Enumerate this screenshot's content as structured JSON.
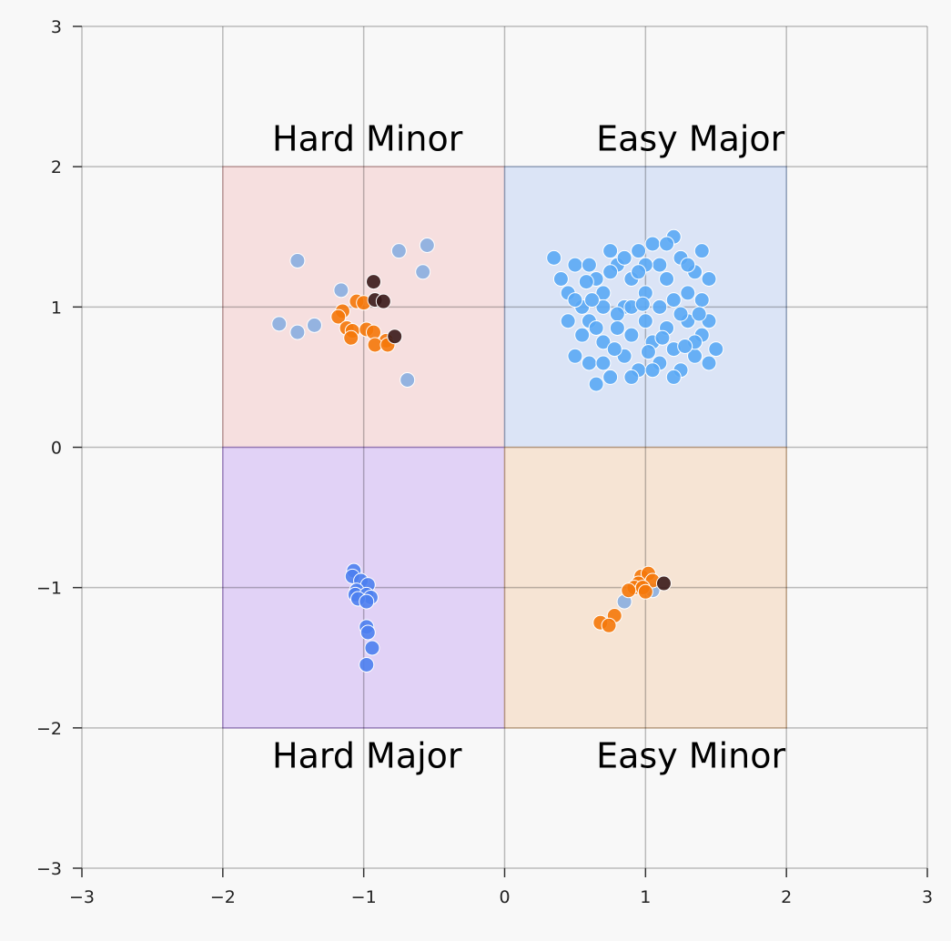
{
  "chart_data": {
    "type": "scatter",
    "title": "",
    "xlabel": "",
    "ylabel": "",
    "xlim": [
      -3,
      3
    ],
    "ylim": [
      -3,
      3
    ],
    "xticks": [
      -3,
      -2,
      -1,
      0,
      1,
      2,
      3
    ],
    "yticks": [
      -3,
      -2,
      -1,
      0,
      1,
      2,
      3
    ],
    "xtick_labels": [
      "−3",
      "−2",
      "−1",
      "0",
      "1",
      "2",
      "3"
    ],
    "ytick_labels": [
      "−3",
      "−2",
      "−1",
      "0",
      "1",
      "2",
      "3"
    ],
    "grid": true,
    "quadrants": [
      {
        "label": "Hard Minor",
        "x_range": [
          -2,
          0
        ],
        "y_range": [
          0,
          2
        ],
        "color": "#f3c1c1",
        "label_pos": [
          -1.65,
          2.2
        ]
      },
      {
        "label": "Easy Major",
        "x_range": [
          0,
          2
        ],
        "y_range": [
          0,
          2
        ],
        "color": "#b9cdf3",
        "label_pos": [
          0.65,
          2.2
        ]
      },
      {
        "label": "Hard Major",
        "x_range": [
          -2,
          0
        ],
        "y_range": [
          -2,
          0
        ],
        "color": "#c6a3f5",
        "label_pos": [
          -1.65,
          -2.2
        ]
      },
      {
        "label": "Easy Minor",
        "x_range": [
          0,
          2
        ],
        "y_range": [
          -2,
          0
        ],
        "color": "#f5cda8",
        "label_pos": [
          0.65,
          -2.2
        ]
      }
    ],
    "series": [
      {
        "color": "#5aa9f5",
        "points": [
          [
            0.35,
            1.35
          ],
          [
            0.4,
            1.2
          ],
          [
            0.45,
            1.1
          ],
          [
            0.5,
            1.3
          ],
          [
            0.55,
            1.0
          ],
          [
            0.6,
            0.9
          ],
          [
            0.65,
            1.2
          ],
          [
            0.7,
            1.1
          ],
          [
            0.75,
            1.4
          ],
          [
            0.8,
            1.3
          ],
          [
            0.85,
            1.0
          ],
          [
            0.9,
            1.2
          ],
          [
            0.95,
            1.4
          ],
          [
            1.0,
            1.1
          ],
          [
            1.05,
            1.45
          ],
          [
            1.1,
            1.3
          ],
          [
            1.15,
            1.2
          ],
          [
            1.2,
            1.5
          ],
          [
            1.25,
            1.35
          ],
          [
            1.3,
            1.1
          ],
          [
            1.35,
            1.25
          ],
          [
            1.4,
            1.05
          ],
          [
            1.45,
            0.9
          ],
          [
            1.5,
            0.7
          ],
          [
            1.45,
            0.6
          ],
          [
            1.4,
            0.8
          ],
          [
            1.35,
            0.65
          ],
          [
            1.3,
            0.9
          ],
          [
            1.25,
            0.55
          ],
          [
            1.2,
            0.7
          ],
          [
            1.15,
            0.85
          ],
          [
            1.1,
            0.6
          ],
          [
            1.05,
            0.75
          ],
          [
            1.0,
            0.9
          ],
          [
            0.95,
            0.55
          ],
          [
            0.9,
            0.8
          ],
          [
            0.85,
            0.65
          ],
          [
            0.8,
            0.95
          ],
          [
            0.75,
            0.5
          ],
          [
            0.7,
            0.75
          ],
          [
            0.65,
            0.45
          ],
          [
            0.6,
            0.6
          ],
          [
            0.55,
            0.8
          ],
          [
            0.5,
            0.65
          ],
          [
            0.45,
            0.9
          ],
          [
            0.5,
            1.05
          ],
          [
            0.6,
            1.3
          ],
          [
            0.7,
            1.0
          ],
          [
            0.8,
            0.85
          ],
          [
            0.9,
            1.0
          ],
          [
            1.0,
            1.3
          ],
          [
            1.1,
            1.0
          ],
          [
            1.2,
            1.05
          ],
          [
            1.3,
            1.3
          ],
          [
            1.4,
            1.4
          ],
          [
            1.25,
            0.95
          ],
          [
            1.15,
            1.45
          ],
          [
            0.95,
            1.25
          ],
          [
            0.85,
            1.35
          ],
          [
            0.65,
            0.85
          ],
          [
            0.75,
            1.25
          ],
          [
            1.35,
            0.75
          ],
          [
            1.05,
            0.55
          ],
          [
            0.9,
            0.5
          ],
          [
            0.7,
            0.6
          ],
          [
            1.2,
            0.5
          ],
          [
            1.45,
            1.2
          ],
          [
            0.62,
            1.05
          ],
          [
            0.78,
            0.7
          ],
          [
            1.02,
            0.68
          ],
          [
            1.12,
            0.78
          ],
          [
            1.28,
            0.72
          ],
          [
            0.98,
            1.02
          ],
          [
            0.58,
            1.18
          ],
          [
            1.38,
            0.95
          ]
        ]
      },
      {
        "color": "#8aaee0",
        "points": [
          [
            -1.47,
            1.33
          ],
          [
            -1.16,
            1.12
          ],
          [
            -0.75,
            1.4
          ],
          [
            -0.55,
            1.44
          ],
          [
            -0.58,
            1.25
          ],
          [
            -1.6,
            0.88
          ],
          [
            -1.47,
            0.82
          ],
          [
            -1.35,
            0.87
          ],
          [
            -0.69,
            0.48
          ],
          [
            0.85,
            -1.1
          ],
          [
            1.05,
            -1.02
          ]
        ]
      },
      {
        "color": "#4d7ff0",
        "points": [
          [
            -1.07,
            -0.88
          ],
          [
            -1.08,
            -0.92
          ],
          [
            -1.02,
            -0.95
          ],
          [
            -0.97,
            -0.98
          ],
          [
            -1.05,
            -1.02
          ],
          [
            -1.06,
            -1.05
          ],
          [
            -0.98,
            -1.05
          ],
          [
            -0.95,
            -1.07
          ],
          [
            -1.04,
            -1.08
          ],
          [
            -0.98,
            -1.1
          ],
          [
            -0.98,
            -1.28
          ],
          [
            -0.97,
            -1.32
          ],
          [
            -0.94,
            -1.43
          ],
          [
            -0.98,
            -1.55
          ]
        ]
      },
      {
        "color": "#f5780a",
        "points": [
          [
            -1.05,
            1.04
          ],
          [
            -1.0,
            1.03
          ],
          [
            -1.15,
            0.97
          ],
          [
            -1.18,
            0.93
          ],
          [
            -1.12,
            0.85
          ],
          [
            -1.08,
            0.83
          ],
          [
            -0.98,
            0.84
          ],
          [
            -0.93,
            0.82
          ],
          [
            -1.09,
            0.78
          ],
          [
            -0.84,
            0.76
          ],
          [
            -0.92,
            0.73
          ],
          [
            -0.83,
            0.73
          ],
          [
            0.97,
            -0.92
          ],
          [
            1.02,
            -0.9
          ],
          [
            1.05,
            -0.95
          ],
          [
            0.95,
            -0.97
          ],
          [
            0.92,
            -1.0
          ],
          [
            0.98,
            -1.0
          ],
          [
            1.0,
            -1.03
          ],
          [
            0.88,
            -1.02
          ],
          [
            0.78,
            -1.2
          ],
          [
            0.68,
            -1.25
          ],
          [
            0.74,
            -1.27
          ]
        ]
      },
      {
        "color": "#3a1a1a",
        "points": [
          [
            -0.93,
            1.18
          ],
          [
            -0.92,
            1.05
          ],
          [
            -0.86,
            1.04
          ],
          [
            -0.78,
            0.79
          ],
          [
            1.13,
            -0.97
          ]
        ]
      }
    ]
  }
}
